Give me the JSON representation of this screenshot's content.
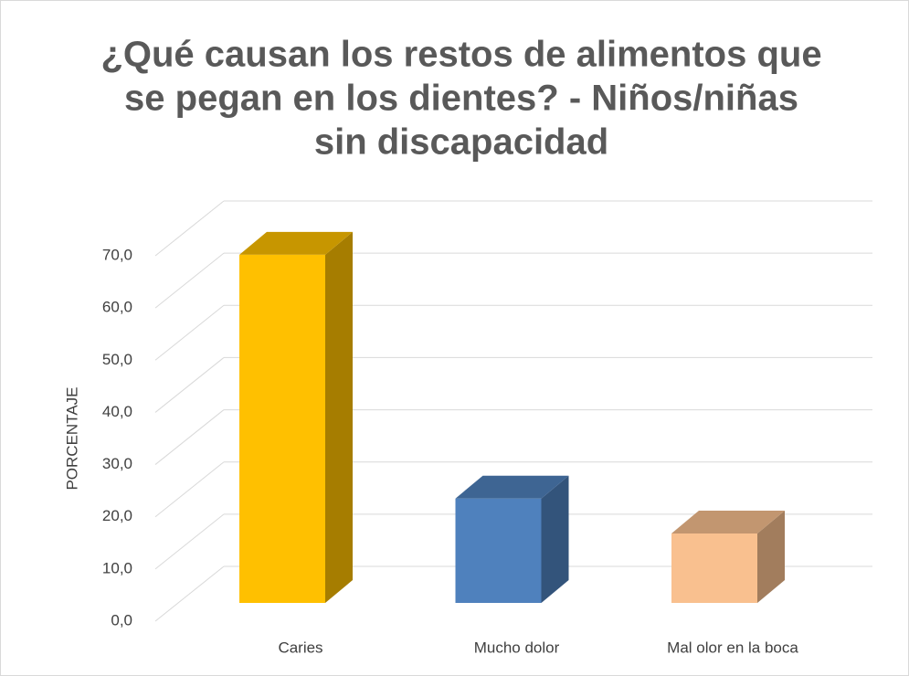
{
  "chart_data": {
    "type": "bar3d",
    "title": [
      "¿Qué causan los restos de alimentos que",
      "se pegan en los dientes? - Niños/niñas",
      "sin discapacidad"
    ],
    "y_label": "PORCENTAJE",
    "categories": [
      "Caries",
      "Mucho dolor",
      "Mal olor en la boca"
    ],
    "values": [
      66.7,
      20.0,
      13.3
    ],
    "colors": [
      "#ffc000",
      "#4f81bd",
      "#f9c08f"
    ],
    "ylim": [
      0,
      70
    ],
    "yticks": [
      {
        "value": 0,
        "label": "0,0"
      },
      {
        "value": 10,
        "label": "10,0"
      },
      {
        "value": 20,
        "label": "20,0"
      },
      {
        "value": 30,
        "label": "30,0"
      },
      {
        "value": 40,
        "label": "40,0"
      },
      {
        "value": 50,
        "label": "50,0"
      },
      {
        "value": 60,
        "label": "60,0"
      },
      {
        "value": 70,
        "label": "70,0"
      }
    ],
    "grid": true
  }
}
